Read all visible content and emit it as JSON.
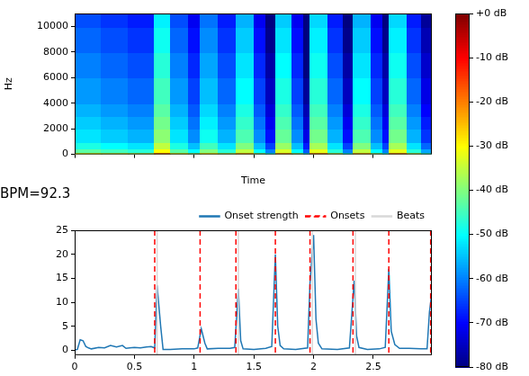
{
  "chart_data": [
    {
      "type": "heatmap",
      "x_label": "Time",
      "y_label": "Hz",
      "xlim": [
        0,
        2.99
      ],
      "ylim": [
        0,
        11025
      ],
      "xticks": [
        0,
        0.5,
        1,
        1.5,
        2,
        2.5
      ],
      "yticks": [
        0,
        2000,
        4000,
        6000,
        8000,
        10000
      ],
      "tick_labels": "y",
      "x_edges": [
        0,
        0.22,
        0.45,
        0.67,
        0.8,
        0.95,
        1.05,
        1.2,
        1.35,
        1.5,
        1.6,
        1.68,
        1.82,
        1.92,
        1.97,
        2.12,
        2.25,
        2.33,
        2.48,
        2.58,
        2.63,
        2.78,
        2.9,
        2.99
      ],
      "y_edges": [
        0,
        200,
        500,
        1000,
        2000,
        3000,
        4000,
        5000,
        6000,
        8000,
        10000,
        11025
      ],
      "cells": [
        [
          -33,
          -35,
          -37,
          -20,
          -33,
          -40,
          -30,
          -37,
          -25,
          -40,
          -50,
          -23,
          -40,
          -53,
          -22,
          -37,
          -50,
          -25,
          -40,
          -50,
          -22,
          -37,
          -47
        ],
        [
          -43,
          -45,
          -47,
          -30,
          -43,
          -50,
          -40,
          -47,
          -35,
          -50,
          -60,
          -33,
          -50,
          -63,
          -32,
          -47,
          -60,
          -35,
          -50,
          -60,
          -32,
          -47,
          -57
        ],
        [
          -48,
          -50,
          -52,
          -35,
          -48,
          -55,
          -45,
          -52,
          -40,
          -55,
          -65,
          -38,
          -55,
          -68,
          -37,
          -52,
          -65,
          -40,
          -55,
          -65,
          -37,
          -52,
          -62
        ],
        [
          -52,
          -54,
          -56,
          -39,
          -52,
          -59,
          -49,
          -56,
          -44,
          -59,
          -69,
          -42,
          -59,
          -72,
          -41,
          -56,
          -69,
          -44,
          -59,
          -69,
          -41,
          -56,
          -66
        ],
        [
          -54,
          -56,
          -58,
          -41,
          -54,
          -61,
          -51,
          -58,
          -46,
          -61,
          -71,
          -44,
          -61,
          -74,
          -43,
          -58,
          -71,
          -46,
          -61,
          -71,
          -43,
          -58,
          -68
        ],
        [
          -56,
          -58,
          -60,
          -43,
          -56,
          -63,
          -53,
          -60,
          -48,
          -63,
          -73,
          -46,
          -63,
          -76,
          -45,
          -60,
          -73,
          -48,
          -63,
          -73,
          -45,
          -60,
          -70
        ],
        [
          -58,
          -60,
          -62,
          -45,
          -58,
          -65,
          -55,
          -62,
          -50,
          -65,
          -75,
          -48,
          -65,
          -78,
          -47,
          -62,
          -75,
          -50,
          -65,
          -75,
          -47,
          -62,
          -72
        ],
        [
          -58,
          -60,
          -62,
          -45,
          -58,
          -65,
          -55,
          -62,
          -50,
          -65,
          -75,
          -48,
          -65,
          -78,
          -47,
          -62,
          -75,
          -50,
          -65,
          -75,
          -47,
          -62,
          -72
        ],
        [
          -60,
          -62,
          -64,
          -47,
          -60,
          -67,
          -57,
          -64,
          -52,
          -67,
          -77,
          -50,
          -67,
          -80,
          -49,
          -64,
          -77,
          -52,
          -67,
          -77,
          -49,
          -64,
          -74
        ],
        [
          -62,
          -64,
          -66,
          -49,
          -62,
          -69,
          -59,
          -66,
          -54,
          -69,
          -79,
          -52,
          -69,
          -80,
          -51,
          -66,
          -79,
          -54,
          -69,
          -79,
          -51,
          -66,
          -76
        ],
        [
          -64,
          -66,
          -68,
          -51,
          -64,
          -71,
          -61,
          -68,
          -56,
          -71,
          -80,
          -54,
          -71,
          -80,
          -53,
          -68,
          -80,
          -56,
          -71,
          -80,
          -53,
          -68,
          -78
        ]
      ],
      "colorbar": {
        "range": [
          -80,
          0
        ],
        "ticks": [
          {
            "value": 0,
            "label": "+0 dB"
          },
          {
            "value": -10,
            "label": "-10 dB"
          },
          {
            "value": -20,
            "label": "-20 dB"
          },
          {
            "value": -30,
            "label": "-30 dB"
          },
          {
            "value": -40,
            "label": "-40 dB"
          },
          {
            "value": -50,
            "label": "-50 dB"
          },
          {
            "value": -60,
            "label": "-60 dB"
          },
          {
            "value": -70,
            "label": "-70 dB"
          },
          {
            "value": -80,
            "label": "-80 dB"
          }
        ]
      }
    },
    {
      "type": "line",
      "title": "BPM=92.3",
      "legend": "top",
      "xlim": [
        0,
        2.99
      ],
      "ylim": [
        -1,
        25
      ],
      "xticks": [
        0,
        0.5,
        1,
        1.5,
        2,
        2.5
      ],
      "yticks": [
        0,
        5,
        10,
        15,
        20,
        25
      ],
      "series": [
        {
          "name": "Onset strength",
          "type": "line",
          "color": "#1f77b4",
          "line_style": "solid",
          "x": [
            0,
            0.023,
            0.046,
            0.07,
            0.093,
            0.116,
            0.14,
            0.2,
            0.25,
            0.3,
            0.35,
            0.4,
            0.43,
            0.46,
            0.5,
            0.55,
            0.6,
            0.64,
            0.67,
            0.69,
            0.72,
            0.74,
            0.8,
            0.9,
            1.0,
            1.03,
            1.06,
            1.09,
            1.11,
            1.2,
            1.3,
            1.34,
            1.37,
            1.39,
            1.41,
            1.5,
            1.6,
            1.65,
            1.68,
            1.7,
            1.72,
            1.75,
            1.85,
            1.95,
            1.97,
            2.0,
            2.02,
            2.04,
            2.07,
            2.2,
            2.3,
            2.34,
            2.36,
            2.38,
            2.45,
            2.55,
            2.6,
            2.63,
            2.65,
            2.68,
            2.72,
            2.8,
            2.9,
            2.95,
            2.97,
            2.99
          ],
          "values": [
            0.1,
            0.2,
            2.2,
            2.0,
            0.8,
            0.5,
            0.3,
            0.6,
            0.5,
            1.0,
            0.7,
            1.0,
            0.4,
            0.5,
            0.6,
            0.5,
            0.7,
            0.8,
            0.5,
            13.5,
            5.0,
            0.2,
            0.2,
            0.3,
            0.3,
            0.5,
            4.5,
            1.5,
            0.3,
            0.4,
            0.4,
            0.6,
            12.8,
            2.0,
            0.3,
            0.2,
            0.4,
            0.8,
            20.0,
            5.0,
            1.0,
            0.3,
            0.2,
            0.5,
            14.0,
            24.0,
            6.5,
            1.5,
            0.3,
            0.2,
            0.5,
            14.5,
            3.0,
            0.6,
            0.2,
            0.3,
            0.6,
            17.0,
            4.0,
            1.2,
            0.4,
            0.4,
            0.3,
            0.3,
            8.0,
            12.0
          ]
        },
        {
          "name": "Onsets",
          "type": "vline",
          "color": "#ff0000",
          "line_style": "dashed",
          "x": [
            0.67,
            1.05,
            1.35,
            1.68,
            1.97,
            2.33,
            2.63,
            2.98
          ]
        },
        {
          "name": "Beats",
          "type": "vline",
          "color": "#d8d8d8",
          "line_style": "solid",
          "x": [
            0.69,
            1.37,
            1.99,
            2.35
          ]
        }
      ]
    }
  ]
}
